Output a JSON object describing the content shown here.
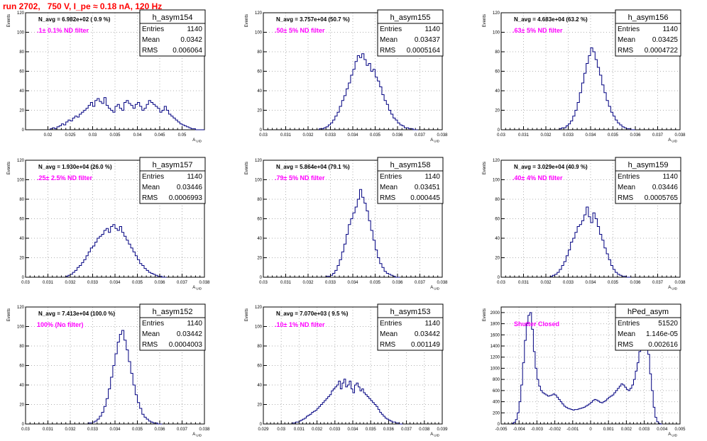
{
  "page_title": "run 2702,   750 V, I_pe ≈ 0.18 nA, 120 Hz",
  "chart_data": [
    {
      "type": "histogram",
      "name": "h_asym154",
      "ylabel": "Events",
      "xlabel": "A_UID",
      "xlim": [
        0.015,
        0.055
      ],
      "ylim": [
        0,
        120
      ],
      "xticks": [
        0.02,
        0.025,
        0.03,
        0.035,
        0.04,
        0.045,
        0.05
      ],
      "xtick_labels": [
        "0.02",
        "0.025",
        "0.03",
        "0.035",
        "0.04",
        "0.045",
        "0.05"
      ],
      "yticks": [
        0,
        20,
        40,
        60,
        80,
        100,
        120
      ],
      "annotation": "N_avg = 6.982e+02 ( 0.9 %)",
      "filter_label": ".1± 0.1% ND filter",
      "stats": {
        "entries": "1140",
        "mean": "0.0342",
        "rms": "0.006064"
      },
      "x_start": 0.0205,
      "bin_width": 0.0005,
      "values": [
        1,
        2,
        1,
        3,
        4,
        6,
        5,
        8,
        10,
        9,
        12,
        14,
        13,
        16,
        18,
        20,
        22,
        25,
        28,
        24,
        30,
        32,
        29,
        27,
        33,
        25,
        22,
        20,
        18,
        24,
        26,
        22,
        20,
        28,
        30,
        27,
        25,
        22,
        26,
        28,
        24,
        20,
        22,
        26,
        30,
        28,
        26,
        24,
        22,
        18,
        20,
        24,
        20,
        16,
        14,
        12,
        10,
        8,
        6,
        5,
        4,
        3,
        2,
        1,
        1,
        0,
        0,
        0,
        0
      ]
    },
    {
      "type": "histogram",
      "name": "h_asym155",
      "ylabel": "Events",
      "xlabel": "A_UID",
      "xlim": [
        0.03,
        0.038
      ],
      "ylim": [
        0,
        120
      ],
      "xticks": [
        0.03,
        0.031,
        0.032,
        0.033,
        0.034,
        0.035,
        0.036,
        0.037,
        0.038
      ],
      "xtick_labels": [
        "0.03",
        "0.031",
        "0.032",
        "0.033",
        "0.034",
        "0.035",
        "0.036",
        "0.037",
        "0.038"
      ],
      "yticks": [
        0,
        20,
        40,
        60,
        80,
        100,
        120
      ],
      "annotation": "N_avg = 3.757e+04 (50.7 %)",
      "filter_label": ".50± 5% ND filter",
      "stats": {
        "entries": "1140",
        "mean": "0.03437",
        "rms": "0.0005164"
      },
      "x_start": 0.0325,
      "bin_width": 0.0001,
      "values": [
        1,
        1,
        2,
        3,
        5,
        7,
        10,
        14,
        18,
        24,
        30,
        35,
        42,
        48,
        56,
        62,
        70,
        76,
        74,
        78,
        72,
        66,
        68,
        60,
        62,
        54,
        50,
        44,
        36,
        30,
        26,
        20,
        16,
        12,
        10,
        7,
        5,
        4,
        2,
        2,
        1,
        1,
        0,
        0
      ]
    },
    {
      "type": "histogram",
      "name": "h_asym156",
      "ylabel": "Events",
      "xlabel": "A_UID",
      "xlim": [
        0.03,
        0.038
      ],
      "ylim": [
        0,
        120
      ],
      "xticks": [
        0.03,
        0.031,
        0.032,
        0.033,
        0.034,
        0.035,
        0.036,
        0.037,
        0.038
      ],
      "xtick_labels": [
        "0.03",
        "0.031",
        "0.032",
        "0.033",
        "0.034",
        "0.035",
        "0.036",
        "0.037",
        "0.038"
      ],
      "yticks": [
        0,
        20,
        40,
        60,
        80,
        100,
        120
      ],
      "annotation": "N_avg = 4.683e+04 (63.2 %)",
      "filter_label": ".63± 5% ND filter",
      "stats": {
        "entries": "1140",
        "mean": "0.03425",
        "rms": "0.0004722"
      },
      "x_start": 0.0326,
      "bin_width": 0.0001,
      "values": [
        1,
        2,
        2,
        4,
        6,
        9,
        14,
        20,
        28,
        38,
        48,
        58,
        68,
        76,
        84,
        80,
        72,
        64,
        56,
        46,
        38,
        30,
        24,
        18,
        14,
        10,
        7,
        5,
        3,
        2,
        1,
        1,
        0,
        0
      ]
    },
    {
      "type": "histogram",
      "name": "h_asym157",
      "ylabel": "Events",
      "xlabel": "A_UID",
      "xlim": [
        0.03,
        0.038
      ],
      "ylim": [
        0,
        120
      ],
      "xticks": [
        0.03,
        0.031,
        0.032,
        0.033,
        0.034,
        0.035,
        0.036,
        0.037,
        0.038
      ],
      "xtick_labels": [
        "0.03",
        "0.031",
        "0.032",
        "0.033",
        "0.034",
        "0.035",
        "0.036",
        "0.037",
        "0.038"
      ],
      "yticks": [
        0,
        20,
        40,
        60,
        80,
        100,
        120
      ],
      "annotation": "N_avg = 1.930e+04 (26.0 %)",
      "filter_label": ".25± 2.5% ND filter",
      "stats": {
        "entries": "1140",
        "mean": "0.03446",
        "rms": "0.0006993"
      },
      "x_start": 0.0318,
      "bin_width": 0.0001,
      "values": [
        1,
        2,
        3,
        5,
        7,
        10,
        12,
        15,
        18,
        22,
        26,
        30,
        32,
        36,
        40,
        42,
        44,
        48,
        50,
        46,
        52,
        54,
        50,
        48,
        52,
        46,
        42,
        38,
        34,
        30,
        26,
        22,
        18,
        14,
        12,
        9,
        7,
        5,
        4,
        3,
        2,
        1,
        1,
        0,
        0
      ]
    },
    {
      "type": "histogram",
      "name": "h_asym158",
      "ylabel": "Events",
      "xlabel": "A_UID",
      "xlim": [
        0.03,
        0.038
      ],
      "ylim": [
        0,
        120
      ],
      "xticks": [
        0.03,
        0.031,
        0.032,
        0.033,
        0.034,
        0.035,
        0.036,
        0.037,
        0.038
      ],
      "xtick_labels": [
        "0.03",
        "0.031",
        "0.032",
        "0.033",
        "0.034",
        "0.035",
        "0.036",
        "0.037",
        "0.038"
      ],
      "yticks": [
        0,
        20,
        40,
        60,
        80,
        100,
        120
      ],
      "annotation": "N_avg = 5.864e+04 (79.1 %)",
      "filter_label": ".79± 5% ND filter",
      "stats": {
        "entries": "1140",
        "mean": "0.03451",
        "rms": "0.000445"
      },
      "x_start": 0.0328,
      "bin_width": 0.0001,
      "values": [
        1,
        1,
        2,
        4,
        7,
        12,
        18,
        26,
        34,
        44,
        54,
        60,
        66,
        72,
        80,
        90,
        82,
        76,
        68,
        58,
        48,
        38,
        28,
        20,
        14,
        10,
        6,
        4,
        3,
        2,
        1,
        0,
        0
      ]
    },
    {
      "type": "histogram",
      "name": "h_asym159",
      "ylabel": "Events",
      "xlabel": "A_UID",
      "xlim": [
        0.03,
        0.038
      ],
      "ylim": [
        0,
        120
      ],
      "xticks": [
        0.03,
        0.031,
        0.032,
        0.033,
        0.034,
        0.035,
        0.036,
        0.037,
        0.038
      ],
      "xtick_labels": [
        "0.03",
        "0.031",
        "0.032",
        "0.033",
        "0.034",
        "0.035",
        "0.036",
        "0.037",
        "0.038"
      ],
      "yticks": [
        0,
        20,
        40,
        60,
        80,
        100,
        120
      ],
      "annotation": "N_avg = 3.029e+04 (40.9 %)",
      "filter_label": ".40± 4% ND filter",
      "stats": {
        "entries": "1140",
        "mean": "0.03446",
        "rms": "0.0005765"
      },
      "x_start": 0.0322,
      "bin_width": 0.0001,
      "values": [
        1,
        2,
        3,
        5,
        8,
        12,
        16,
        22,
        28,
        36,
        40,
        46,
        52,
        54,
        58,
        64,
        72,
        62,
        56,
        66,
        60,
        52,
        44,
        38,
        30,
        24,
        18,
        12,
        8,
        5,
        3,
        2,
        1,
        1,
        0,
        0
      ]
    },
    {
      "type": "histogram",
      "name": "h_asym152",
      "ylabel": "Events",
      "xlabel": "A_UID",
      "xlim": [
        0.03,
        0.038
      ],
      "ylim": [
        0,
        120
      ],
      "xticks": [
        0.03,
        0.031,
        0.032,
        0.033,
        0.034,
        0.035,
        0.036,
        0.037,
        0.038
      ],
      "xtick_labels": [
        "0.03",
        "0.031",
        "0.032",
        "0.033",
        "0.034",
        "0.035",
        "0.036",
        "0.037",
        "0.038"
      ],
      "yticks": [
        0,
        20,
        40,
        60,
        80,
        100,
        120
      ],
      "annotation": "N_avg = 7.413e+04 (100.0 %)",
      "filter_label": "100% (No filter)",
      "stats": {
        "entries": "1140",
        "mean": "0.03442",
        "rms": "0.0004003"
      },
      "x_start": 0.0328,
      "bin_width": 0.0001,
      "values": [
        1,
        1,
        2,
        3,
        5,
        8,
        12,
        18,
        26,
        36,
        48,
        60,
        72,
        84,
        92,
        96,
        86,
        76,
        64,
        52,
        40,
        30,
        22,
        16,
        10,
        7,
        5,
        3,
        2,
        1,
        1,
        0,
        0
      ]
    },
    {
      "type": "histogram",
      "name": "h_asym153",
      "ylabel": "Events",
      "xlabel": "A_UID",
      "xlim": [
        0.029,
        0.039
      ],
      "ylim": [
        0,
        120
      ],
      "xticks": [
        0.029,
        0.03,
        0.031,
        0.032,
        0.033,
        0.034,
        0.035,
        0.036,
        0.037,
        0.038,
        0.039
      ],
      "xtick_labels": [
        "0.029",
        "0.03",
        "0.031",
        "0.032",
        "0.033",
        "0.034",
        "0.035",
        "0.036",
        "0.037",
        "0.038",
        "0.039"
      ],
      "yticks": [
        0,
        20,
        40,
        60,
        80,
        100,
        120
      ],
      "annotation": "N_avg = 7.070e+03 ( 9.5 %)",
      "filter_label": ".10± 1% ND filter",
      "stats": {
        "entries": "1140",
        "mean": "0.03442",
        "rms": "0.001149"
      },
      "x_start": 0.0306,
      "bin_width": 0.0001,
      "values": [
        1,
        1,
        2,
        2,
        3,
        4,
        5,
        6,
        8,
        9,
        10,
        12,
        13,
        14,
        16,
        18,
        20,
        22,
        24,
        26,
        28,
        30,
        34,
        36,
        38,
        40,
        44,
        36,
        42,
        46,
        38,
        40,
        44,
        36,
        32,
        40,
        42,
        38,
        34,
        36,
        32,
        30,
        28,
        26,
        24,
        22,
        20,
        18,
        15,
        12,
        10,
        8,
        6,
        5,
        4,
        3,
        2,
        2,
        1,
        1,
        0,
        0
      ]
    },
    {
      "type": "histogram",
      "name": "hPed_asym",
      "ylabel": "Events",
      "xlabel": "A_UID",
      "xlim": [
        -0.005,
        0.005
      ],
      "ylim": [
        0,
        2100
      ],
      "xticks": [
        -0.005,
        -0.004,
        -0.003,
        -0.002,
        -0.001,
        0,
        0.001,
        0.002,
        0.003,
        0.004,
        0.005
      ],
      "xtick_labels": [
        "-0.005",
        "-0.004",
        "-0.003",
        "-0.002",
        "-0.001",
        "0",
        "0.001",
        "0.002",
        "0.003",
        "0.004",
        "0.005"
      ],
      "yticks": [
        0,
        200,
        400,
        600,
        800,
        1000,
        1200,
        1400,
        1600,
        1800,
        2000
      ],
      "annotation": "",
      "filter_label": "Shutter Closed",
      "stats": {
        "entries": "51520",
        "mean": "1.146e-05",
        "rms": "0.002616"
      },
      "x_start": -0.0044,
      "bin_width": 0.0001,
      "values": [
        10,
        30,
        80,
        200,
        400,
        700,
        1100,
        1500,
        1800,
        1950,
        2000,
        1700,
        1300,
        1000,
        800,
        680,
        600,
        560,
        540,
        520,
        500,
        510,
        520,
        540,
        520,
        480,
        440,
        400,
        360,
        320,
        300,
        280,
        270,
        260,
        250,
        260,
        260,
        270,
        280,
        290,
        300,
        320,
        340,
        360,
        390,
        420,
        440,
        430,
        410,
        390,
        380,
        400,
        420,
        450,
        480,
        500,
        520,
        560,
        600,
        640,
        680,
        720,
        700,
        660,
        620,
        600,
        640,
        700,
        800,
        950,
        1100,
        1300,
        1450,
        1550,
        1600,
        1500,
        1250,
        900,
        600,
        300,
        120,
        40,
        10,
        0
      ]
    }
  ]
}
